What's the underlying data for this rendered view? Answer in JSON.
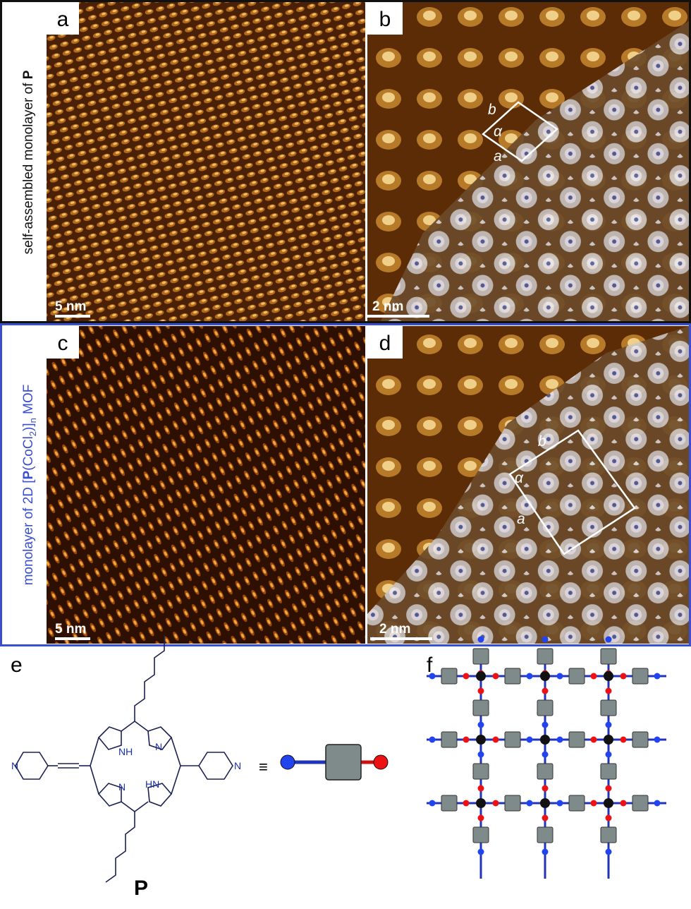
{
  "panels": [
    {
      "label": "a",
      "scale_bar": "5 nm"
    },
    {
      "label": "b",
      "scale_bar": "2 nm",
      "cell": {
        "b": "b",
        "alpha": "α",
        "a": "a"
      }
    },
    {
      "label": "c",
      "scale_bar": "5 nm"
    },
    {
      "label": "d",
      "scale_bar": "2 nm",
      "cell": {
        "b": "b",
        "alpha": "α",
        "a": "a"
      }
    }
  ],
  "side_labels": [
    [
      "self-assembled monolayer of ",
      "P"
    ],
    [
      "monolayer of 2D [",
      "P",
      "(CoCl",
      "2",
      ")]",
      "n",
      " MOF"
    ]
  ],
  "structure": {
    "label": "e",
    "atoms": [
      "NH",
      "N",
      "N",
      "HN",
      "N",
      "N"
    ],
    "equivalence": "≡",
    "name": "P"
  },
  "network": {
    "label": "f"
  }
}
